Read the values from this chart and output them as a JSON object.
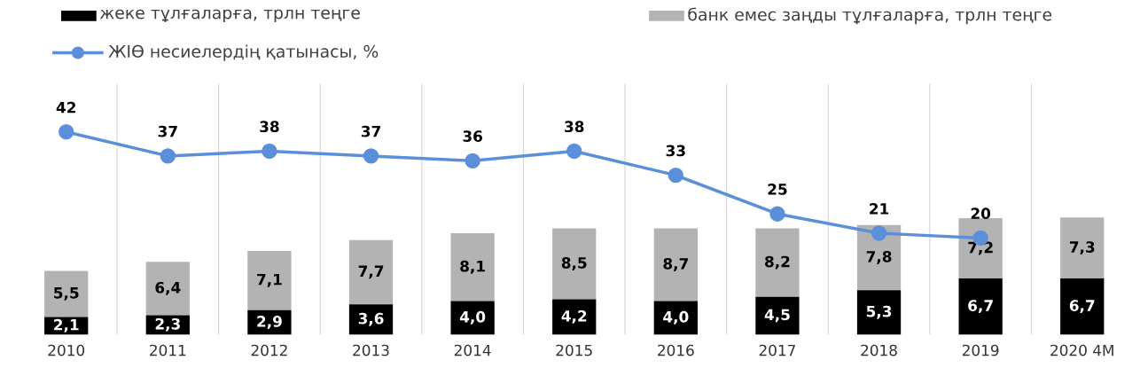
{
  "chart_data": {
    "type": "bar",
    "stacked": true,
    "categories": [
      "2010",
      "2011",
      "2012",
      "2013",
      "2014",
      "2015",
      "2016",
      "2017",
      "2018",
      "2019",
      "2020 4М"
    ],
    "series": [
      {
        "name": "жеке тұлғаларға, трлн теңге",
        "color": "#000000",
        "values": [
          2.1,
          2.3,
          2.9,
          3.6,
          4.0,
          4.2,
          4.0,
          4.5,
          5.3,
          6.7,
          6.7
        ],
        "value_labels": [
          "2,1",
          "2,3",
          "2,9",
          "3,6",
          "4,0",
          "4,2",
          "4,0",
          "4,5",
          "5,3",
          "6,7",
          "6,7"
        ]
      },
      {
        "name": "банк емес заңды тұлғаларға, трлн теңге",
        "color": "#b3b3b3",
        "values": [
          5.5,
          6.4,
          7.1,
          7.7,
          8.1,
          8.5,
          8.7,
          8.2,
          7.8,
          7.2,
          7.3
        ],
        "value_labels": [
          "5,5",
          "6,4",
          "7,1",
          "7,7",
          "8,1",
          "8,5",
          "8,7",
          "8,2",
          "7,8",
          "7,2",
          "7,3"
        ]
      },
      {
        "name": "ЖІӨ несиелердің қатынасы, %",
        "type": "line",
        "axis": "y2",
        "color": "#5b8fd9",
        "values": [
          42,
          37,
          38,
          37,
          36,
          38,
          33,
          25,
          21,
          20,
          null
        ],
        "value_labels": [
          "42",
          "37",
          "38",
          "37",
          "36",
          "38",
          "33",
          "25",
          "21",
          "20",
          null
        ]
      }
    ],
    "ylim": [
      0,
      30
    ],
    "y2lim": [
      0,
      52
    ],
    "tick_labels": "x",
    "grid": "x",
    "legend": "top",
    "marker": "circle"
  }
}
